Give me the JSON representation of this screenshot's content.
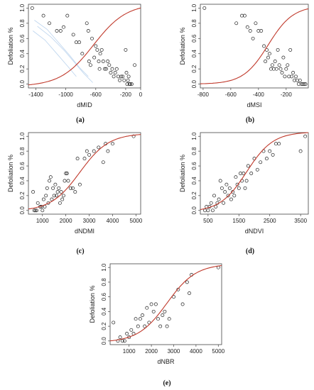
{
  "chart_data": [
    {
      "type": "scatter",
      "panel_label": "(a)",
      "xlabel": "dMID",
      "ylabel": "Defoliation %",
      "xlim": [
        -1500,
        0
      ],
      "ylim": [
        -0.05,
        1.05
      ],
      "xticks": [
        -1400,
        -1000,
        -600,
        -200,
        0
      ],
      "xtick_labels": [
        "-1400",
        "-1000",
        "-600",
        "-200",
        "0"
      ],
      "yticks": [
        0.0,
        0.2,
        0.4,
        0.6,
        0.8,
        1.0
      ],
      "ytick_labels": [
        "0.0",
        "0.2",
        "0.4",
        "0.6",
        "0.8",
        "1.0"
      ],
      "fit": {
        "L": -0.03,
        "U": 1.06,
        "x0": -630,
        "s": 220
      },
      "x": [
        -1450,
        -1300,
        -1220,
        -1120,
        -1070,
        -1030,
        -980,
        -900,
        -860,
        -820,
        -780,
        -720,
        -700,
        -690,
        -670,
        -650,
        -620,
        -600,
        -580,
        -560,
        -550,
        -540,
        -520,
        -500,
        -480,
        -460,
        -440,
        -420,
        -400,
        -380,
        -360,
        -340,
        -320,
        -300,
        -280,
        -260,
        -240,
        -220,
        -200,
        -190,
        -180,
        -170,
        -160,
        -150,
        -140,
        -120,
        -80
      ],
      "y": [
        1.0,
        0.9,
        0.8,
        0.7,
        0.7,
        0.75,
        0.9,
        0.65,
        0.55,
        0.55,
        0.4,
        0.8,
        0.7,
        0.3,
        0.25,
        0.6,
        0.35,
        0.5,
        0.45,
        0.3,
        0.2,
        0.4,
        0.45,
        0.3,
        0.2,
        0.2,
        0.3,
        0.25,
        0.15,
        0.2,
        0.1,
        0.15,
        0.2,
        0.1,
        0.05,
        0.1,
        0.1,
        0.05,
        0.45,
        0.15,
        0.0,
        0.05,
        0.1,
        0.0,
        0.0,
        0.0,
        0.25
      ]
    },
    {
      "type": "scatter",
      "panel_label": "(b)",
      "xlabel": "dMSI",
      "ylabel": "Defoliation %",
      "xlim": [
        -820,
        -40
      ],
      "ylim": [
        -0.05,
        1.05
      ],
      "xticks": [
        -800,
        -600,
        -400,
        -200
      ],
      "xtick_labels": [
        "-800",
        "-600",
        "-400",
        "-200"
      ],
      "yticks": [
        0.0,
        0.2,
        0.4,
        0.6,
        0.8,
        1.0
      ],
      "ytick_labels": [
        "0.0",
        "0.2",
        "0.4",
        "0.6",
        "0.8",
        "1.0"
      ],
      "fit": {
        "L": 0.0,
        "U": 1.03,
        "x0": -330,
        "s": 90
      },
      "x": [
        -790,
        -560,
        -520,
        -500,
        -480,
        -460,
        -440,
        -420,
        -400,
        -380,
        -360,
        -350,
        -340,
        -330,
        -320,
        -310,
        -300,
        -290,
        -280,
        -270,
        -260,
        -250,
        -240,
        -230,
        -220,
        -210,
        -200,
        -190,
        -180,
        -170,
        -160,
        -150,
        -140,
        -130,
        -120,
        -110,
        -100,
        -90,
        -80,
        -70,
        -60
      ],
      "y": [
        1.0,
        0.8,
        0.9,
        0.9,
        0.75,
        0.7,
        0.6,
        0.8,
        0.7,
        0.7,
        0.5,
        0.3,
        0.45,
        0.35,
        0.4,
        0.2,
        0.25,
        0.2,
        0.3,
        0.2,
        0.45,
        0.25,
        0.2,
        0.15,
        0.35,
        0.1,
        0.2,
        0.25,
        0.1,
        0.45,
        0.1,
        0.15,
        0.05,
        0.1,
        0.05,
        0.0,
        0.05,
        0.0,
        0.0,
        0.0,
        0.0
      ]
    },
    {
      "type": "scatter",
      "panel_label": "(c)",
      "xlabel": "dNDMI",
      "ylabel": "Defoliation %",
      "xlim": [
        400,
        5200
      ],
      "ylim": [
        -0.05,
        1.05
      ],
      "xticks": [
        1000,
        2000,
        3000,
        4000,
        5000
      ],
      "xtick_labels": [
        "1000",
        "2000",
        "3000",
        "4000",
        "5000"
      ],
      "yticks": [
        0.0,
        0.2,
        0.4,
        0.6,
        0.8,
        1.0
      ],
      "ytick_labels": [
        "0.0",
        "0.2",
        "0.4",
        "0.6",
        "0.8",
        "1.0"
      ],
      "fit": {
        "L": -0.01,
        "U": 1.04,
        "x0": 2600,
        "s": 620
      },
      "x": [
        600,
        650,
        700,
        750,
        800,
        900,
        950,
        1000,
        1050,
        1100,
        1150,
        1200,
        1250,
        1300,
        1350,
        1400,
        1450,
        1500,
        1550,
        1600,
        1650,
        1700,
        1750,
        1800,
        1850,
        1900,
        1950,
        2000,
        2050,
        2100,
        2200,
        2300,
        2400,
        2500,
        2600,
        2800,
        2900,
        3000,
        3200,
        3400,
        3600,
        3700,
        3800,
        4000,
        4900
      ],
      "y": [
        0.25,
        0.0,
        0.0,
        0.0,
        0.1,
        0.05,
        0.05,
        0.0,
        0.15,
        0.05,
        0.2,
        0.3,
        0.1,
        0.4,
        0.45,
        0.15,
        0.3,
        0.2,
        0.35,
        0.2,
        0.25,
        0.3,
        0.1,
        0.25,
        0.15,
        0.2,
        0.4,
        0.5,
        0.5,
        0.4,
        0.3,
        0.3,
        0.25,
        0.7,
        0.35,
        0.7,
        0.8,
        0.75,
        0.8,
        0.85,
        0.65,
        0.9,
        0.8,
        0.9,
        1.0
      ]
    },
    {
      "type": "scatter",
      "panel_label": "(d)",
      "xlabel": "dNDVI",
      "ylabel": "Defoliation %",
      "xlim": [
        250,
        3750
      ],
      "ylim": [
        -0.05,
        1.05
      ],
      "xticks": [
        500,
        1500,
        2500,
        3500
      ],
      "xtick_labels": [
        "500",
        "1500",
        "2500",
        "3500"
      ],
      "yticks": [
        0.0,
        0.2,
        0.4,
        0.6,
        0.8,
        1.0
      ],
      "ytick_labels": [
        "0.0",
        "0.2",
        "0.4",
        "0.6",
        "0.8",
        "1.0"
      ],
      "fit": {
        "L": -0.02,
        "U": 1.06,
        "x0": 1750,
        "s": 430
      },
      "x": [
        400,
        450,
        500,
        550,
        600,
        650,
        700,
        750,
        800,
        850,
        900,
        950,
        1000,
        1050,
        1100,
        1150,
        1200,
        1250,
        1300,
        1350,
        1400,
        1450,
        1500,
        1550,
        1600,
        1650,
        1700,
        1750,
        1800,
        1900,
        2000,
        2100,
        2200,
        2300,
        2400,
        2500,
        2600,
        2700,
        2800,
        3500,
        3650
      ],
      "y": [
        0.0,
        0.05,
        0.0,
        0.05,
        0.1,
        0.0,
        0.2,
        0.05,
        0.1,
        0.15,
        0.4,
        0.3,
        0.1,
        0.25,
        0.35,
        0.2,
        0.3,
        0.15,
        0.25,
        0.2,
        0.45,
        0.35,
        0.3,
        0.5,
        0.4,
        0.5,
        0.3,
        0.4,
        0.6,
        0.5,
        0.7,
        0.55,
        0.65,
        0.8,
        0.7,
        0.8,
        0.75,
        0.9,
        0.9,
        0.8,
        1.0
      ]
    },
    {
      "type": "scatter",
      "panel_label": "(e)",
      "xlabel": "dNBR",
      "ylabel": "Defoliation %",
      "xlim": [
        150,
        5150
      ],
      "ylim": [
        -0.05,
        1.05
      ],
      "xticks": [
        1000,
        2000,
        3000,
        4000,
        5000
      ],
      "xtick_labels": [
        "1000",
        "2000",
        "3000",
        "4000",
        "5000"
      ],
      "yticks": [
        0.0,
        0.2,
        0.4,
        0.6,
        0.8,
        1.0
      ],
      "ytick_labels": [
        "0.0",
        "0.2",
        "0.4",
        "0.6",
        "0.8",
        "1.0"
      ],
      "fit": {
        "L": -0.02,
        "U": 1.05,
        "x0": 2700,
        "s": 650
      },
      "x": [
        300,
        500,
        600,
        700,
        800,
        900,
        1000,
        1100,
        1200,
        1300,
        1400,
        1500,
        1600,
        1700,
        1800,
        1900,
        2000,
        2100,
        2200,
        2300,
        2400,
        2500,
        2600,
        2700,
        2800,
        3000,
        3200,
        3400,
        3600,
        3700,
        3800,
        5000
      ],
      "y": [
        0.25,
        0.0,
        0.05,
        0.0,
        0.0,
        0.1,
        0.05,
        0.15,
        0.1,
        0.3,
        0.2,
        0.3,
        0.35,
        0.2,
        0.45,
        0.25,
        0.5,
        0.4,
        0.5,
        0.3,
        0.2,
        0.35,
        0.4,
        0.2,
        0.3,
        0.6,
        0.7,
        0.5,
        0.8,
        0.65,
        0.9,
        1.0
      ]
    }
  ]
}
